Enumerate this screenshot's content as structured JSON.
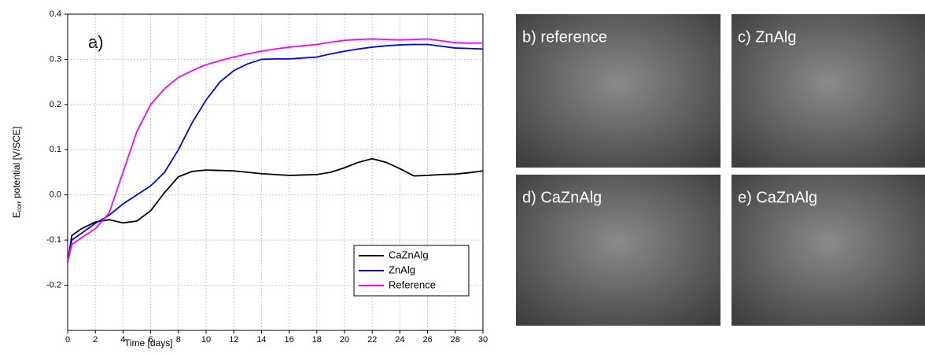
{
  "chart_data": {
    "type": "line",
    "annotation": "a)",
    "xlabel": "Time [days]",
    "ylabel": {
      "main": "E",
      "sub": "corr",
      "rest": " potential [V/SCE]"
    },
    "x": [
      0,
      0.3,
      1,
      2,
      3,
      4,
      5,
      6,
      7,
      8,
      9,
      10,
      11,
      12,
      13,
      14,
      15,
      16,
      17,
      18,
      19,
      20,
      21,
      22,
      23,
      24,
      25,
      26,
      27,
      28,
      29,
      30
    ],
    "series": [
      {
        "name": "CaZnAlg",
        "color": "#000000",
        "values": [
          -0.15,
          -0.09,
          -0.075,
          -0.06,
          -0.055,
          -0.062,
          -0.058,
          -0.035,
          0.005,
          0.04,
          0.052,
          0.055,
          0.054,
          0.053,
          0.05,
          0.047,
          0.045,
          0.043,
          0.044,
          0.045,
          0.05,
          0.06,
          0.072,
          0.08,
          0.072,
          0.058,
          0.042,
          0.043,
          0.045,
          0.046,
          0.049,
          0.053
        ]
      },
      {
        "name": "ZnAlg",
        "color": "#0000ff",
        "values": [
          -0.15,
          -0.1,
          -0.085,
          -0.063,
          -0.045,
          -0.02,
          0.0,
          0.02,
          0.05,
          0.1,
          0.16,
          0.21,
          0.25,
          0.275,
          0.29,
          0.3,
          0.301,
          0.301,
          0.303,
          0.305,
          0.312,
          0.318,
          0.323,
          0.327,
          0.33,
          0.332,
          0.333,
          0.333,
          0.329,
          0.325,
          0.324,
          0.323
        ]
      },
      {
        "name": "Reference",
        "color": "#ff00ff",
        "values": [
          -0.15,
          -0.11,
          -0.095,
          -0.075,
          -0.04,
          0.05,
          0.14,
          0.2,
          0.235,
          0.26,
          0.275,
          0.288,
          0.297,
          0.305,
          0.312,
          0.318,
          0.323,
          0.327,
          0.33,
          0.333,
          0.338,
          0.342,
          0.344,
          0.345,
          0.344,
          0.343,
          0.344,
          0.345,
          0.341,
          0.337,
          0.336,
          0.336
        ]
      }
    ],
    "xlim": [
      0,
      30
    ],
    "xticks": [
      0,
      2,
      4,
      6,
      8,
      10,
      12,
      14,
      16,
      18,
      20,
      22,
      24,
      26,
      28,
      30
    ],
    "ylim": [
      -0.3,
      0.4
    ],
    "yticks": [
      {
        "value": -0.2,
        "label": "-0.2"
      },
      {
        "value": -0.1,
        "label": "-0.1"
      },
      {
        "value": 0,
        "label": "0.0"
      },
      0.1,
      0.2,
      0.3,
      0.4
    ],
    "grid": true,
    "legend": "lower right"
  },
  "images": [
    {
      "label": "b) reference"
    },
    {
      "label": "c) ZnAlg"
    },
    {
      "label": "d) CaZnAlg"
    },
    {
      "label": "e) CaZnAlg"
    }
  ]
}
